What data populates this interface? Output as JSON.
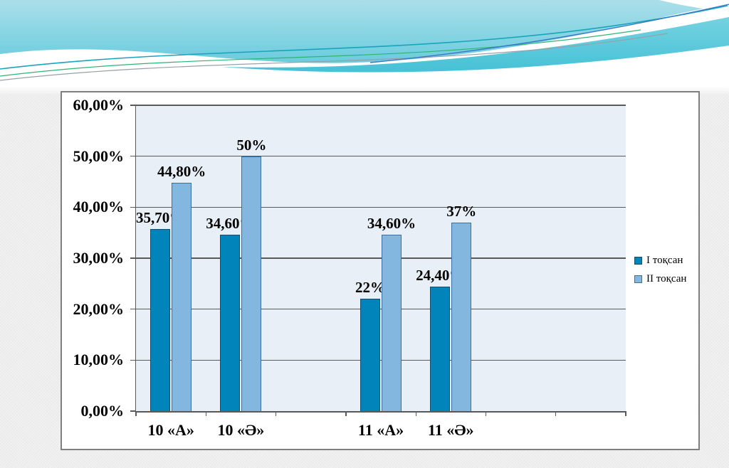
{
  "slide": {
    "background": "#f1f1f2",
    "card_background": "#ffffff",
    "card_border_color": "#7f7f7f"
  },
  "header": {
    "colors": {
      "sky_top": "#abdfe9",
      "sky_bottom": "#4ac2d8",
      "band_light": "#6ed0df",
      "band_dark": "#3cbed4",
      "wave_white": "#ffffff",
      "line_teal": "#17a5bc",
      "line_green": "#2bb673",
      "line_grey": "#98a0a6",
      "line_blue": "#3a77c9"
    }
  },
  "chart_data": {
    "type": "bar",
    "title": "",
    "categories": [
      "10 «А»",
      "10 «Ә»",
      "",
      "11 «А»",
      "11 «Ә»",
      "",
      ""
    ],
    "series": [
      {
        "name": "I тоқсан",
        "color": "#0084ba",
        "border_color": "#174e70",
        "values": [
          35.7,
          34.6,
          null,
          22,
          24.4,
          null,
          null
        ],
        "labels": [
          "35,70%",
          "34,60%",
          null,
          "22%",
          "24,40%",
          null,
          null
        ]
      },
      {
        "name": "II тоқсан",
        "color": "#84b7df",
        "border_color": "#3a6f9f",
        "values": [
          44.8,
          50,
          null,
          34.6,
          37,
          null,
          null
        ],
        "labels": [
          "44,80%",
          "50%",
          null,
          "34,60%",
          "37%",
          null,
          null
        ]
      }
    ],
    "ylim": [
      0,
      60
    ],
    "ytick_step": 10,
    "ytick_labels": [
      "0,00%",
      "10,00%",
      "20,00%",
      "30,00%",
      "40,00%",
      "50,00%",
      "60,00%"
    ],
    "grid": true,
    "gridline_color": "#595959",
    "plot_background": "#e8eff7",
    "legend_position": "right-middle"
  }
}
